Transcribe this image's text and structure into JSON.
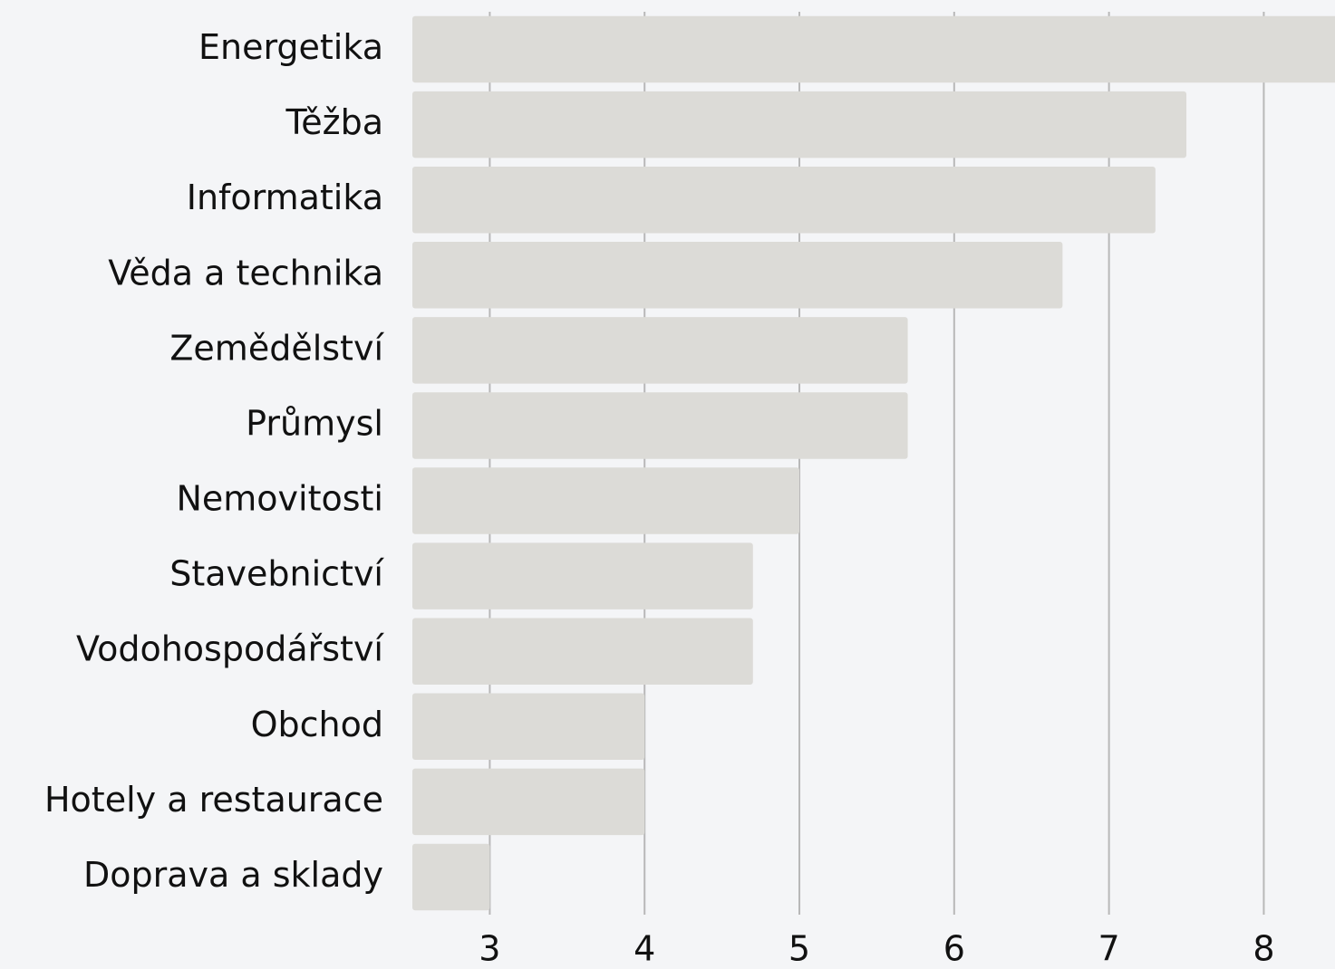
{
  "chart_data": {
    "type": "bar",
    "orientation": "horizontal",
    "categories": [
      "Energetika",
      "Těžba",
      "Informatika",
      "Věda a technika",
      "Zemědělství",
      "Průmysl",
      "Nemovitosti",
      "Stavebnictví",
      "Vodohospodářství",
      "Obchod",
      "Hotely a restaurace",
      "Doprava a sklady"
    ],
    "values": [
      8.5,
      7.5,
      7.3,
      6.7,
      5.7,
      5.7,
      5.0,
      4.7,
      4.7,
      4.0,
      4.0,
      3.0
    ],
    "color": "#dcdbd7",
    "xlim": [
      2.5,
      8.46
    ],
    "xticks": [
      3,
      4,
      5,
      6,
      7,
      8
    ],
    "grid": true
  }
}
